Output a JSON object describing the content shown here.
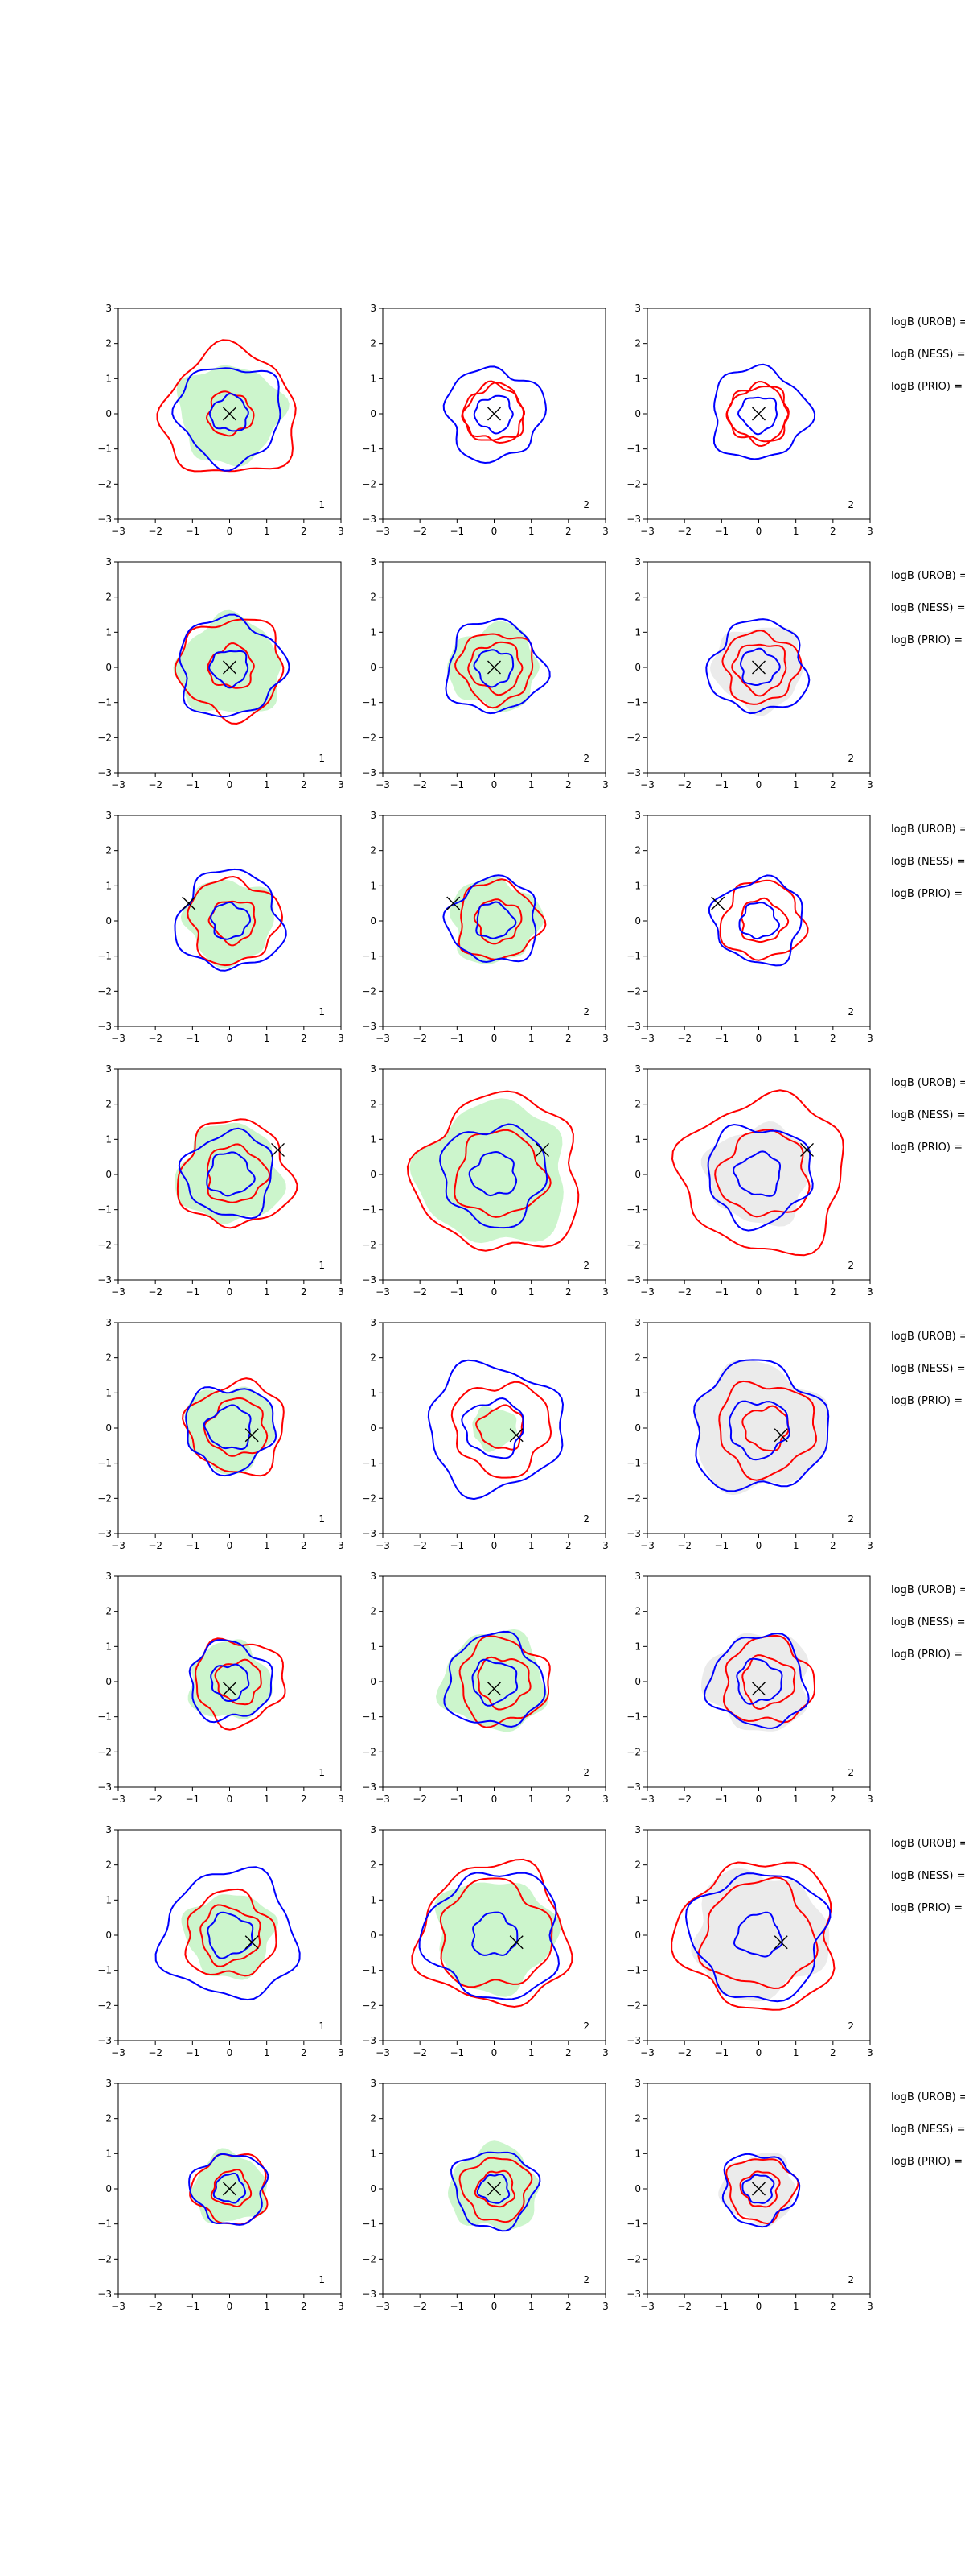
{
  "chart_data": {
    "type": "contour-grid",
    "axis_range": {
      "x": [
        -3,
        3
      ],
      "y": [
        -3,
        3
      ]
    },
    "ticks": [
      -3,
      -2,
      -1,
      0,
      1,
      2,
      3
    ],
    "colors": {
      "blue": "#0000ff",
      "red": "#ff0000",
      "green_fill": "#ccf5cc",
      "gray_fill": "#ebebeb",
      "marker": "#000000"
    },
    "logb_labels": [
      "logB (UROB) =",
      "logB (NESS) =",
      "logB (PRIO) ="
    ],
    "rows": [
      {
        "marker": [
          0.0,
          0.0
        ],
        "panels": [
          {
            "label": "1",
            "fill": "green",
            "blue": [
              0.5,
              1.4
            ],
            "red": [
              0.6,
              1.8
            ],
            "shade": 1.4
          },
          {
            "label": "2",
            "fill": "none",
            "blue": [
              0.5,
              1.3
            ],
            "red": [
              0.8,
              0.8
            ],
            "shade": 0
          },
          {
            "label": "2",
            "fill": "none",
            "blue": [
              0.5,
              1.3
            ],
            "red": [
              0.8,
              0.8
            ],
            "shade": 0
          }
        ]
      },
      {
        "marker": [
          0.0,
          0.0
        ],
        "panels": [
          {
            "label": "1",
            "fill": "green",
            "blue": [
              0.5,
              1.4
            ],
            "red": [
              0.6,
              1.4
            ],
            "shade": 1.4
          },
          {
            "label": "2",
            "fill": "green",
            "blue": [
              0.5,
              1.3
            ],
            "red": [
              0.7,
              1.0
            ],
            "shade": 1.2
          },
          {
            "label": "2",
            "fill": "gray",
            "blue": [
              0.5,
              1.3
            ],
            "red": [
              0.7,
              1.0
            ],
            "shade": 1.2
          }
        ]
      },
      {
        "marker": [
          -1.1,
          0.5
        ],
        "panels": [
          {
            "label": "1",
            "fill": "green",
            "blue": [
              0.5,
              1.4
            ],
            "red": [
              0.6,
              1.2
            ],
            "shade": 1.2
          },
          {
            "label": "2",
            "fill": "green",
            "blue": [
              0.5,
              1.2
            ],
            "red": [
              0.6,
              1.1
            ],
            "shade": 1.2
          },
          {
            "label": "2",
            "fill": "none",
            "blue": [
              0.5,
              1.2
            ],
            "red": [
              0.6,
              1.1
            ],
            "shade": 0
          }
        ]
      },
      {
        "marker": [
          1.3,
          0.7
        ],
        "panels": [
          {
            "label": "1",
            "fill": "green",
            "blue": [
              0.6,
              1.2
            ],
            "red": [
              0.8,
              1.5
            ],
            "shade": 1.4
          },
          {
            "label": "2",
            "fill": "green",
            "blue": [
              0.6,
              1.4
            ],
            "red": [
              1.2,
              2.2
            ],
            "shade": 2.0
          },
          {
            "label": "2",
            "fill": "gray",
            "blue": [
              0.6,
              1.4
            ],
            "red": [
              1.2,
              2.2
            ],
            "shade": 1.4
          }
        ]
      },
      {
        "marker": [
          0.6,
          -0.2
        ],
        "panels": [
          {
            "label": "1",
            "fill": "green",
            "blue": [
              0.6,
              1.2
            ],
            "red": [
              0.8,
              1.3
            ],
            "shade": 1.2
          },
          {
            "label": "2",
            "fill": "green",
            "blue": [
              0.8,
              1.8
            ],
            "red": [
              0.6,
              1.3
            ],
            "shade": 0.6
          },
          {
            "label": "2",
            "fill": "gray",
            "blue": [
              0.8,
              1.8
            ],
            "red": [
              0.6,
              1.3
            ],
            "shade": 1.8
          }
        ]
      },
      {
        "marker": [
          0.0,
          -0.2
        ],
        "panels": [
          {
            "label": "1",
            "fill": "green",
            "blue": [
              0.5,
              1.1
            ],
            "red": [
              0.6,
              1.2
            ],
            "shade": 1.1
          },
          {
            "label": "2",
            "fill": "green",
            "blue": [
              0.6,
              1.3
            ],
            "red": [
              0.7,
              1.2
            ],
            "shade": 1.4
          },
          {
            "label": "2",
            "fill": "gray",
            "blue": [
              0.6,
              1.3
            ],
            "red": [
              0.7,
              1.2
            ],
            "shade": 1.4
          }
        ]
      },
      {
        "marker": [
          0.6,
          -0.2
        ],
        "panels": [
          {
            "label": "1",
            "fill": "green",
            "blue": [
              0.6,
              1.8
            ],
            "red": [
              0.8,
              1.2
            ],
            "shade": 1.2
          },
          {
            "label": "2",
            "fill": "green",
            "blue": [
              0.6,
              1.8
            ],
            "red": [
              1.5,
              2.0
            ],
            "shade": 1.6
          },
          {
            "label": "2",
            "fill": "gray",
            "blue": [
              0.6,
              1.8
            ],
            "red": [
              1.5,
              2.1
            ],
            "shade": 1.8
          }
        ]
      },
      {
        "marker": [
          0.0,
          0.0
        ],
        "panels": [
          {
            "label": "1",
            "fill": "green",
            "blue": [
              0.4,
              1.0
            ],
            "red": [
              0.5,
              1.0
            ],
            "shade": 1.0
          },
          {
            "label": "2",
            "fill": "green",
            "blue": [
              0.4,
              1.1
            ],
            "red": [
              0.5,
              0.9
            ],
            "shade": 1.2
          },
          {
            "label": "2",
            "fill": "gray",
            "blue": [
              0.4,
              1.0
            ],
            "red": [
              0.5,
              0.9
            ],
            "shade": 1.0
          }
        ]
      }
    ]
  }
}
